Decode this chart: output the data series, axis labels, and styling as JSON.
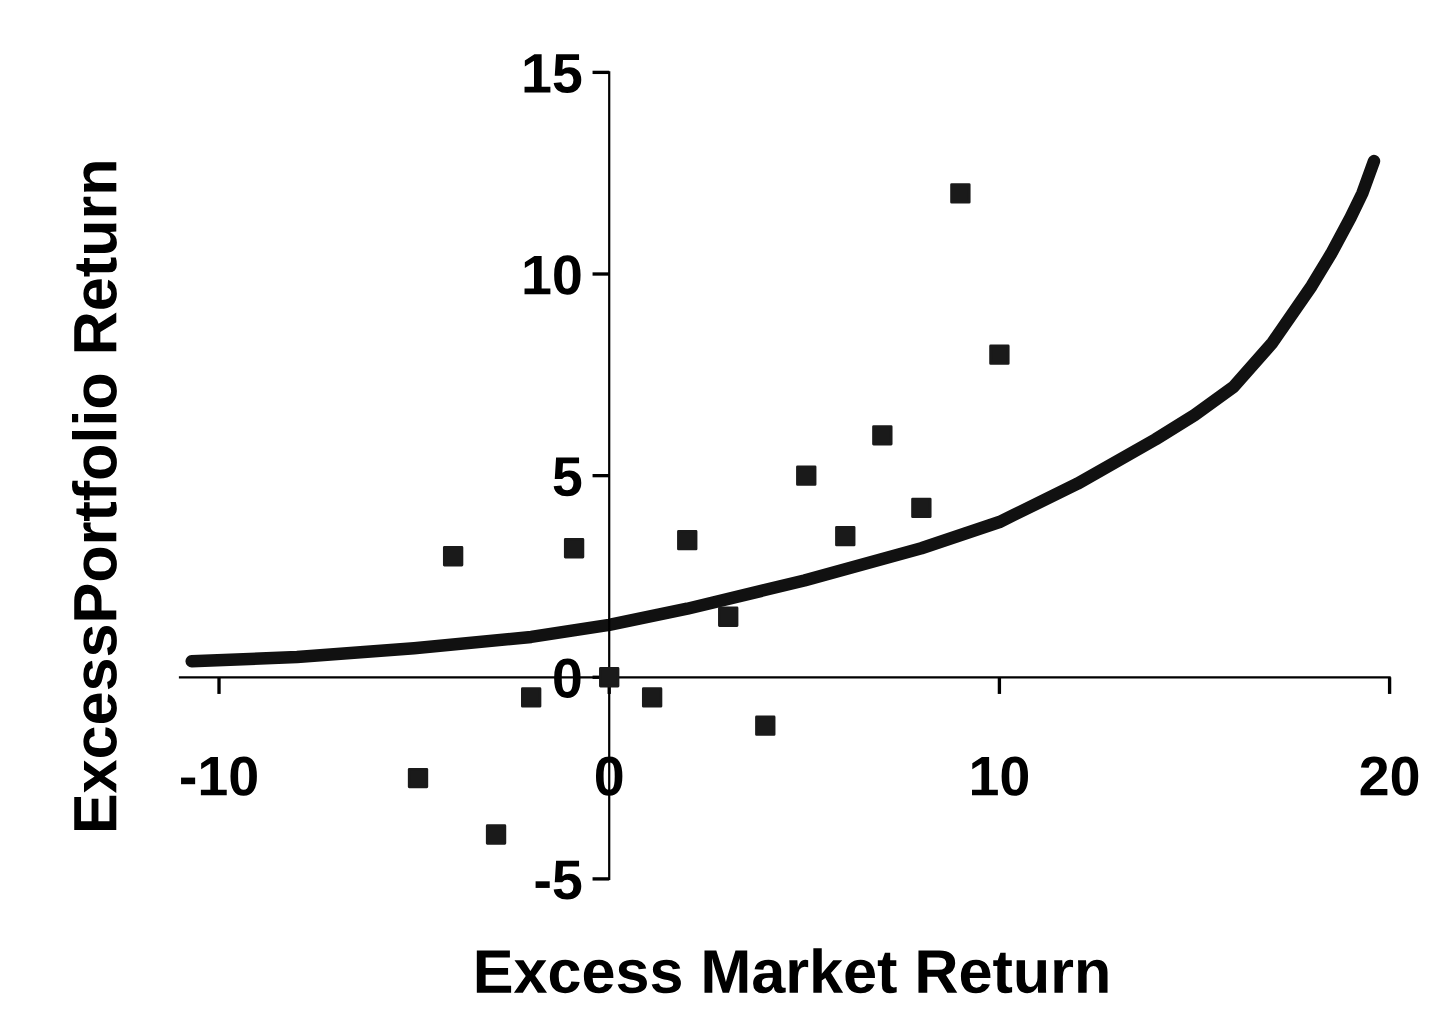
{
  "chart_data": {
    "type": "scatter",
    "xlabel": "Excess Market Return",
    "ylabel": "ExcessPortfolio Return",
    "xlim": [
      -11,
      20
    ],
    "ylim": [
      -5,
      15
    ],
    "xticks": [
      -10,
      0,
      10,
      20
    ],
    "yticks": [
      -5,
      0,
      5,
      10,
      15
    ],
    "grid": false,
    "series": [
      {
        "color": "#1a1a1a",
        "marker": "square",
        "x": [
          -4.0,
          -4.9,
          -2.9,
          -2.0,
          -0.9,
          0,
          1.1,
          2.0,
          3.05,
          4.0,
          5.05,
          6.05,
          7.0,
          8.0,
          9.0,
          10.0
        ],
        "values": [
          3.0,
          -2.5,
          -3.9,
          -0.5,
          3.2,
          0,
          -0.5,
          3.4,
          1.5,
          -1.2,
          5.0,
          3.5,
          6.0,
          4.2,
          12.0,
          8.0
        ]
      },
      {
        "type": "line",
        "color": "#111111",
        "line_style": "solid",
        "x": [
          -10.7,
          -8,
          -5,
          -2,
          0,
          2,
          5,
          8,
          10,
          12,
          14,
          15,
          16,
          17,
          18,
          18.5,
          19,
          19.3,
          19.6
        ],
        "values": [
          0.4,
          0.5,
          0.72,
          1.0,
          1.3,
          1.7,
          2.4,
          3.2,
          3.85,
          4.8,
          5.9,
          6.5,
          7.2,
          8.3,
          9.7,
          10.5,
          11.4,
          12.0,
          12.8
        ]
      }
    ]
  }
}
